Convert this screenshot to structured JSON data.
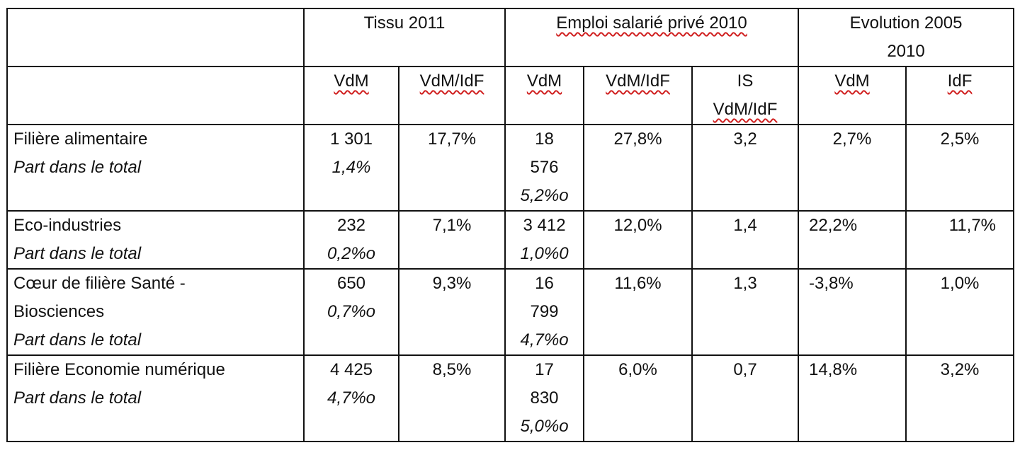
{
  "header": {
    "groups": [
      "Tissu 2011",
      "Emploi salarié privé 2010",
      "Evolution 2005",
      "2010"
    ],
    "sub": [
      "VdM",
      "VdM/IdF",
      "VdM",
      "VdM/IdF",
      "IS",
      "VdM/IdF",
      "VdM",
      "IdF"
    ]
  },
  "rows": [
    {
      "label": [
        "Filière alimentaire",
        "Part dans le total"
      ],
      "tissu_vdm": [
        "1 301",
        "1,4%"
      ],
      "tissu_ratio": "17,7%",
      "emploi_vdm": [
        "18",
        "576",
        "5,2%o"
      ],
      "emploi_ratio": "27,8%",
      "is": "3,2",
      "evo_vdm": "2,7%",
      "evo_idf": "2,5%"
    },
    {
      "label": [
        "Eco-industries",
        "Part dans le total"
      ],
      "tissu_vdm": [
        "232",
        "0,2%o"
      ],
      "tissu_ratio": "7,1%",
      "emploi_vdm": [
        "3 412",
        "1,0%0"
      ],
      "emploi_ratio": "12,0%",
      "is": "1,4",
      "evo_vdm": "22,2%",
      "evo_idf": "11,7%"
    },
    {
      "label": [
        "Cœur de filière Santé -",
        "Biosciences",
        "Part dans le total"
      ],
      "tissu_vdm": [
        "650",
        "0,7%o"
      ],
      "tissu_ratio": "9,3%",
      "emploi_vdm": [
        "16",
        "799",
        "4,7%o"
      ],
      "emploi_ratio": "11,6%",
      "is": "1,3",
      "evo_vdm": "-3,8%",
      "evo_idf": "1,0%"
    },
    {
      "label": [
        "Filière Economie numérique",
        "Part dans le total"
      ],
      "tissu_vdm": [
        "4 425",
        "4,7%o"
      ],
      "tissu_ratio": "8,5%",
      "emploi_vdm": [
        "17",
        "830",
        "5,0%o"
      ],
      "emploi_ratio": "6,0%",
      "is": "0,7",
      "evo_vdm": "14,8%",
      "evo_idf": "3,2%"
    }
  ]
}
